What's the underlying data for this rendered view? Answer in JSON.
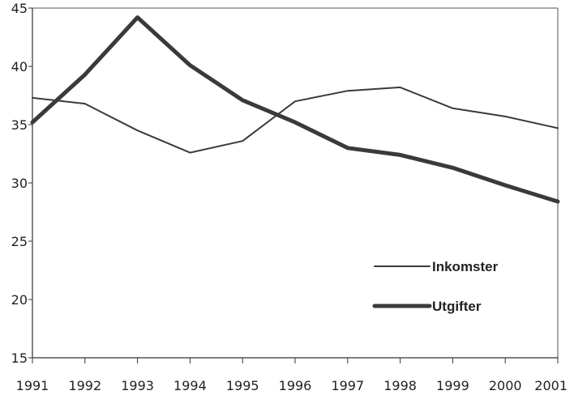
{
  "chart_data": {
    "type": "line",
    "x": [
      "1991",
      "1992",
      "1993",
      "1994",
      "1995",
      "1996",
      "1997",
      "1998",
      "1999",
      "2000",
      "2001"
    ],
    "ylim": [
      15,
      45
    ],
    "yticks": [
      "15",
      "20",
      "25",
      "30",
      "35",
      "40",
      "45"
    ],
    "grid": false,
    "legend_position": "lower-right",
    "series": [
      {
        "name": "Inkomster",
        "color": "#3a3a3a",
        "line_style": "thin",
        "values": [
          37.3,
          36.8,
          34.5,
          32.6,
          33.6,
          37.0,
          37.9,
          38.2,
          36.4,
          35.7,
          34.7
        ]
      },
      {
        "name": "Utgifter",
        "color": "#3a3a3a",
        "line_style": "thick",
        "values": [
          35.2,
          39.3,
          44.2,
          40.1,
          37.1,
          35.2,
          33.0,
          32.4,
          31.3,
          29.8,
          28.4
        ]
      }
    ]
  }
}
